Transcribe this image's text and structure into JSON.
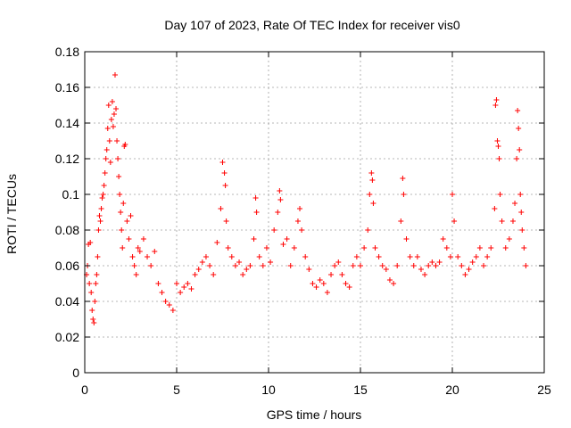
{
  "chart_data": {
    "type": "scatter",
    "title": "Day 107 of 2023, Rate Of TEC Index for receiver vis0",
    "xlabel": "GPS time / hours",
    "ylabel": "ROTI / TECUs",
    "xlim": [
      0,
      25
    ],
    "ylim": [
      0,
      0.18
    ],
    "x_ticks": [
      0,
      5,
      10,
      15,
      20,
      25
    ],
    "x_tick_labels": [
      "0",
      "5",
      "10",
      "15",
      "20",
      "25"
    ],
    "y_ticks": [
      0,
      0.02,
      0.04,
      0.06,
      0.08,
      0.1,
      0.12,
      0.14,
      0.16,
      0.18
    ],
    "y_tick_labels": [
      "0",
      "0.02",
      "0.04",
      "0.06",
      "0.08",
      "0.1",
      "0.12",
      "0.14",
      "0.16",
      "0.18"
    ],
    "grid": true,
    "marker": "plus",
    "color": "#ff0000",
    "series": [
      {
        "points": [
          [
            0.1,
            0.055
          ],
          [
            0.15,
            0.06
          ],
          [
            0.2,
            0.072
          ],
          [
            0.25,
            0.05
          ],
          [
            0.3,
            0.073
          ],
          [
            0.35,
            0.045
          ],
          [
            0.4,
            0.035
          ],
          [
            0.45,
            0.03
          ],
          [
            0.5,
            0.028
          ],
          [
            0.55,
            0.04
          ],
          [
            0.6,
            0.05
          ],
          [
            0.65,
            0.055
          ],
          [
            0.7,
            0.065
          ],
          [
            0.75,
            0.08
          ],
          [
            0.8,
            0.088
          ],
          [
            0.85,
            0.085
          ],
          [
            0.9,
            0.092
          ],
          [
            0.95,
            0.098
          ],
          [
            1.0,
            0.1
          ],
          [
            1.05,
            0.105
          ],
          [
            1.1,
            0.112
          ],
          [
            1.15,
            0.12
          ],
          [
            1.2,
            0.125
          ],
          [
            1.25,
            0.137
          ],
          [
            1.3,
            0.15
          ],
          [
            1.35,
            0.13
          ],
          [
            1.4,
            0.118
          ],
          [
            1.45,
            0.142
          ],
          [
            1.5,
            0.152
          ],
          [
            1.55,
            0.138
          ],
          [
            1.6,
            0.145
          ],
          [
            1.65,
            0.167
          ],
          [
            1.7,
            0.148
          ],
          [
            1.75,
            0.13
          ],
          [
            1.8,
            0.12
          ],
          [
            1.85,
            0.11
          ],
          [
            1.9,
            0.1
          ],
          [
            1.95,
            0.09
          ],
          [
            2.0,
            0.08
          ],
          [
            2.05,
            0.07
          ],
          [
            2.1,
            0.095
          ],
          [
            2.15,
            0.127
          ],
          [
            2.2,
            0.128
          ],
          [
            2.3,
            0.085
          ],
          [
            2.4,
            0.075
          ],
          [
            2.5,
            0.088
          ],
          [
            2.6,
            0.065
          ],
          [
            2.7,
            0.06
          ],
          [
            2.8,
            0.055
          ],
          [
            2.9,
            0.07
          ],
          [
            3.0,
            0.068
          ],
          [
            3.2,
            0.075
          ],
          [
            3.4,
            0.065
          ],
          [
            3.6,
            0.06
          ],
          [
            3.8,
            0.068
          ],
          [
            4.0,
            0.05
          ],
          [
            4.2,
            0.045
          ],
          [
            4.4,
            0.04
          ],
          [
            4.6,
            0.038
          ],
          [
            4.8,
            0.035
          ],
          [
            5.0,
            0.05
          ],
          [
            5.2,
            0.045
          ],
          [
            5.4,
            0.048
          ],
          [
            5.6,
            0.05
          ],
          [
            5.8,
            0.047
          ],
          [
            6.0,
            0.055
          ],
          [
            6.2,
            0.058
          ],
          [
            6.4,
            0.062
          ],
          [
            6.6,
            0.065
          ],
          [
            6.8,
            0.06
          ],
          [
            7.0,
            0.055
          ],
          [
            7.2,
            0.073
          ],
          [
            7.4,
            0.092
          ],
          [
            7.5,
            0.118
          ],
          [
            7.6,
            0.112
          ],
          [
            7.65,
            0.105
          ],
          [
            7.7,
            0.085
          ],
          [
            7.8,
            0.07
          ],
          [
            8.0,
            0.065
          ],
          [
            8.2,
            0.06
          ],
          [
            8.4,
            0.062
          ],
          [
            8.6,
            0.055
          ],
          [
            8.8,
            0.058
          ],
          [
            9.0,
            0.06
          ],
          [
            9.2,
            0.075
          ],
          [
            9.3,
            0.098
          ],
          [
            9.35,
            0.09
          ],
          [
            9.5,
            0.065
          ],
          [
            9.7,
            0.06
          ],
          [
            9.9,
            0.07
          ],
          [
            10.1,
            0.062
          ],
          [
            10.3,
            0.08
          ],
          [
            10.5,
            0.09
          ],
          [
            10.6,
            0.102
          ],
          [
            10.65,
            0.097
          ],
          [
            10.8,
            0.072
          ],
          [
            11.0,
            0.075
          ],
          [
            11.2,
            0.06
          ],
          [
            11.4,
            0.07
          ],
          [
            11.6,
            0.085
          ],
          [
            11.7,
            0.092
          ],
          [
            11.8,
            0.08
          ],
          [
            12.0,
            0.065
          ],
          [
            12.2,
            0.058
          ],
          [
            12.4,
            0.05
          ],
          [
            12.6,
            0.048
          ],
          [
            12.8,
            0.052
          ],
          [
            13.0,
            0.05
          ],
          [
            13.2,
            0.045
          ],
          [
            13.4,
            0.055
          ],
          [
            13.6,
            0.06
          ],
          [
            13.8,
            0.062
          ],
          [
            14.0,
            0.055
          ],
          [
            14.2,
            0.05
          ],
          [
            14.4,
            0.048
          ],
          [
            14.6,
            0.06
          ],
          [
            14.8,
            0.065
          ],
          [
            15.0,
            0.06
          ],
          [
            15.2,
            0.07
          ],
          [
            15.4,
            0.08
          ],
          [
            15.5,
            0.1
          ],
          [
            15.6,
            0.112
          ],
          [
            15.65,
            0.108
          ],
          [
            15.7,
            0.095
          ],
          [
            15.8,
            0.07
          ],
          [
            16.0,
            0.065
          ],
          [
            16.2,
            0.06
          ],
          [
            16.4,
            0.058
          ],
          [
            16.6,
            0.052
          ],
          [
            16.8,
            0.05
          ],
          [
            17.0,
            0.06
          ],
          [
            17.2,
            0.085
          ],
          [
            17.3,
            0.109
          ],
          [
            17.35,
            0.1
          ],
          [
            17.5,
            0.075
          ],
          [
            17.7,
            0.065
          ],
          [
            17.9,
            0.06
          ],
          [
            18.1,
            0.065
          ],
          [
            18.3,
            0.058
          ],
          [
            18.5,
            0.055
          ],
          [
            18.7,
            0.06
          ],
          [
            18.9,
            0.062
          ],
          [
            19.1,
            0.06
          ],
          [
            19.3,
            0.062
          ],
          [
            19.5,
            0.075
          ],
          [
            19.7,
            0.07
          ],
          [
            19.9,
            0.065
          ],
          [
            20.0,
            0.1
          ],
          [
            20.1,
            0.085
          ],
          [
            20.3,
            0.065
          ],
          [
            20.5,
            0.06
          ],
          [
            20.7,
            0.055
          ],
          [
            20.9,
            0.058
          ],
          [
            21.1,
            0.062
          ],
          [
            21.3,
            0.065
          ],
          [
            21.5,
            0.07
          ],
          [
            21.7,
            0.06
          ],
          [
            21.9,
            0.065
          ],
          [
            22.1,
            0.07
          ],
          [
            22.3,
            0.092
          ],
          [
            22.35,
            0.15
          ],
          [
            22.4,
            0.153
          ],
          [
            22.45,
            0.13
          ],
          [
            22.5,
            0.127
          ],
          [
            22.55,
            0.12
          ],
          [
            22.6,
            0.1
          ],
          [
            22.7,
            0.085
          ],
          [
            22.9,
            0.07
          ],
          [
            23.1,
            0.075
          ],
          [
            23.3,
            0.085
          ],
          [
            23.4,
            0.095
          ],
          [
            23.5,
            0.12
          ],
          [
            23.55,
            0.147
          ],
          [
            23.6,
            0.137
          ],
          [
            23.65,
            0.125
          ],
          [
            23.7,
            0.1
          ],
          [
            23.75,
            0.09
          ],
          [
            23.8,
            0.08
          ],
          [
            23.9,
            0.07
          ],
          [
            24.0,
            0.06
          ]
        ]
      }
    ]
  }
}
